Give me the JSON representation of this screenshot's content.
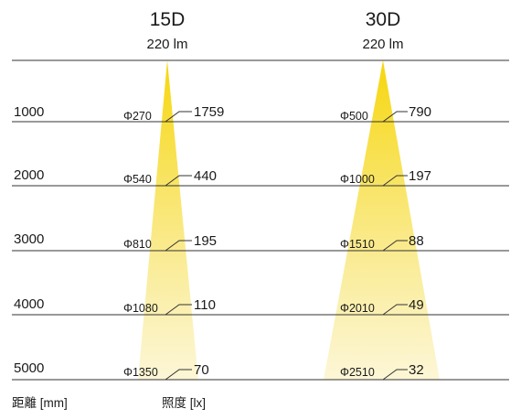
{
  "columns": [
    {
      "title": "15D",
      "lumen": "220 lm",
      "rows": [
        {
          "diameter": "Φ270",
          "lux": "1759"
        },
        {
          "diameter": "Φ540",
          "lux": "440"
        },
        {
          "diameter": "Φ810",
          "lux": "195"
        },
        {
          "diameter": "Φ1080",
          "lux": "110"
        },
        {
          "diameter": "Φ1350",
          "lux": "70"
        }
      ]
    },
    {
      "title": "30D",
      "lumen": "220 lm",
      "rows": [
        {
          "diameter": "Φ500",
          "lux": "790"
        },
        {
          "diameter": "Φ1000",
          "lux": "197"
        },
        {
          "diameter": "Φ1510",
          "lux": "88"
        },
        {
          "diameter": "Φ2010",
          "lux": "49"
        },
        {
          "diameter": "Φ2510",
          "lux": "32"
        }
      ]
    }
  ],
  "distances": [
    "1000",
    "2000",
    "3000",
    "4000",
    "5000"
  ],
  "captions": {
    "distance": "距離 [mm]",
    "illuminance": "照度 [lx]"
  },
  "colors": {
    "beam_top": "#f6d60b",
    "beam_bottom": "#fbf3c8",
    "line": "#333333"
  }
}
